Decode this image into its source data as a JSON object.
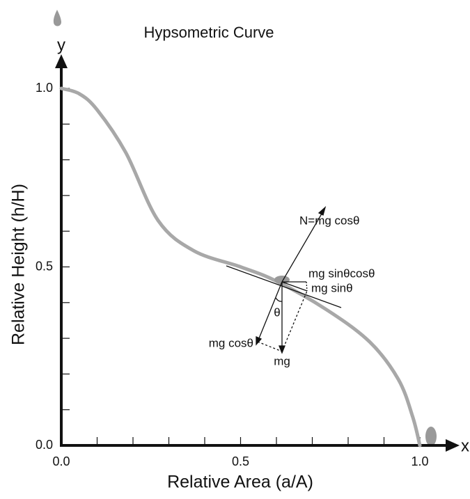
{
  "chart_data": {
    "type": "line",
    "title": "Hypsometric Curve",
    "x_label": "Relative Area (a/A)",
    "y_label": "Relative Height (h/H)",
    "x_axis_name": "x",
    "y_axis_name": "y",
    "x": [
      0,
      0.05,
      0.1,
      0.18,
      0.27,
      0.37,
      0.5,
      0.6,
      0.74,
      0.86,
      0.94,
      0.98,
      1.0
    ],
    "series": [
      {
        "color": "#a8a8a8",
        "values": [
          1.0,
          0.985,
          0.94,
          0.82,
          0.63,
          0.545,
          0.5,
          0.46,
          0.38,
          0.29,
          0.185,
          0.08,
          0.0
        ]
      }
    ],
    "xlim": [
      0,
      1
    ],
    "ylim": [
      0,
      1
    ],
    "xticks": [
      {
        "value": 0,
        "label": "0.0"
      },
      0.5,
      {
        "value": 1,
        "label": "1.0"
      }
    ],
    "yticks": [
      {
        "value": 0,
        "label": "0.0"
      },
      0.5,
      {
        "value": 1,
        "label": "1.0"
      }
    ],
    "xminor_ticks": [
      0.1,
      0.2,
      0.3,
      0.4,
      0.6,
      0.7,
      0.8,
      0.9
    ],
    "yminor_ticks": [
      0.1,
      0.2,
      0.3,
      0.4,
      0.6,
      0.7,
      0.8,
      0.9
    ],
    "annotations": [
      "N=mg cosθ",
      "mg sinθcosθ",
      "mg sinθ",
      "θ",
      "mg cosθ",
      "mg"
    ]
  }
}
